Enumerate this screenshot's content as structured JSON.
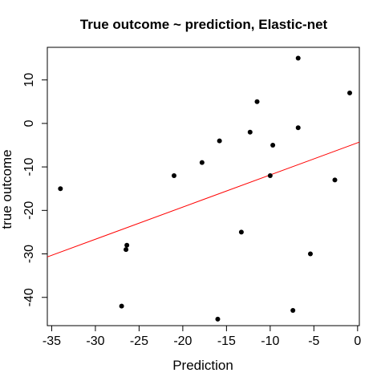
{
  "chart_data": {
    "type": "scatter",
    "title": "True outcome ~ prediction, Elastic-net",
    "xlabel": "Prediction",
    "ylabel": "true outcome",
    "xlim": [
      -35.5,
      0.2
    ],
    "ylim": [
      -46.5,
      17.5
    ],
    "xticks": [
      -35,
      -30,
      -25,
      -20,
      -15,
      -10,
      -5,
      0
    ],
    "yticks": [
      -40,
      -30,
      -20,
      -10,
      0,
      10
    ],
    "points": [
      {
        "x": -34.0,
        "y": -15
      },
      {
        "x": -27.0,
        "y": -42
      },
      {
        "x": -26.5,
        "y": -29
      },
      {
        "x": -26.4,
        "y": -28
      },
      {
        "x": -21.0,
        "y": -12
      },
      {
        "x": -17.8,
        "y": -9
      },
      {
        "x": -16.0,
        "y": -45
      },
      {
        "x": -15.8,
        "y": -4
      },
      {
        "x": -13.3,
        "y": -25
      },
      {
        "x": -12.3,
        "y": -2
      },
      {
        "x": -11.5,
        "y": 5
      },
      {
        "x": -10.0,
        "y": -12
      },
      {
        "x": -9.7,
        "y": -5
      },
      {
        "x": -7.4,
        "y": -43
      },
      {
        "x": -6.8,
        "y": 15
      },
      {
        "x": -6.8,
        "y": -1
      },
      {
        "x": -5.4,
        "y": -30
      },
      {
        "x": -2.6,
        "y": -13
      },
      {
        "x": -0.9,
        "y": 7
      }
    ],
    "fit_line": {
      "x": [
        -35.5,
        0.2
      ],
      "y": [
        -30.7,
        -4.3
      ],
      "color": "#ff0000"
    },
    "point_color": "#000000",
    "grid": false
  }
}
